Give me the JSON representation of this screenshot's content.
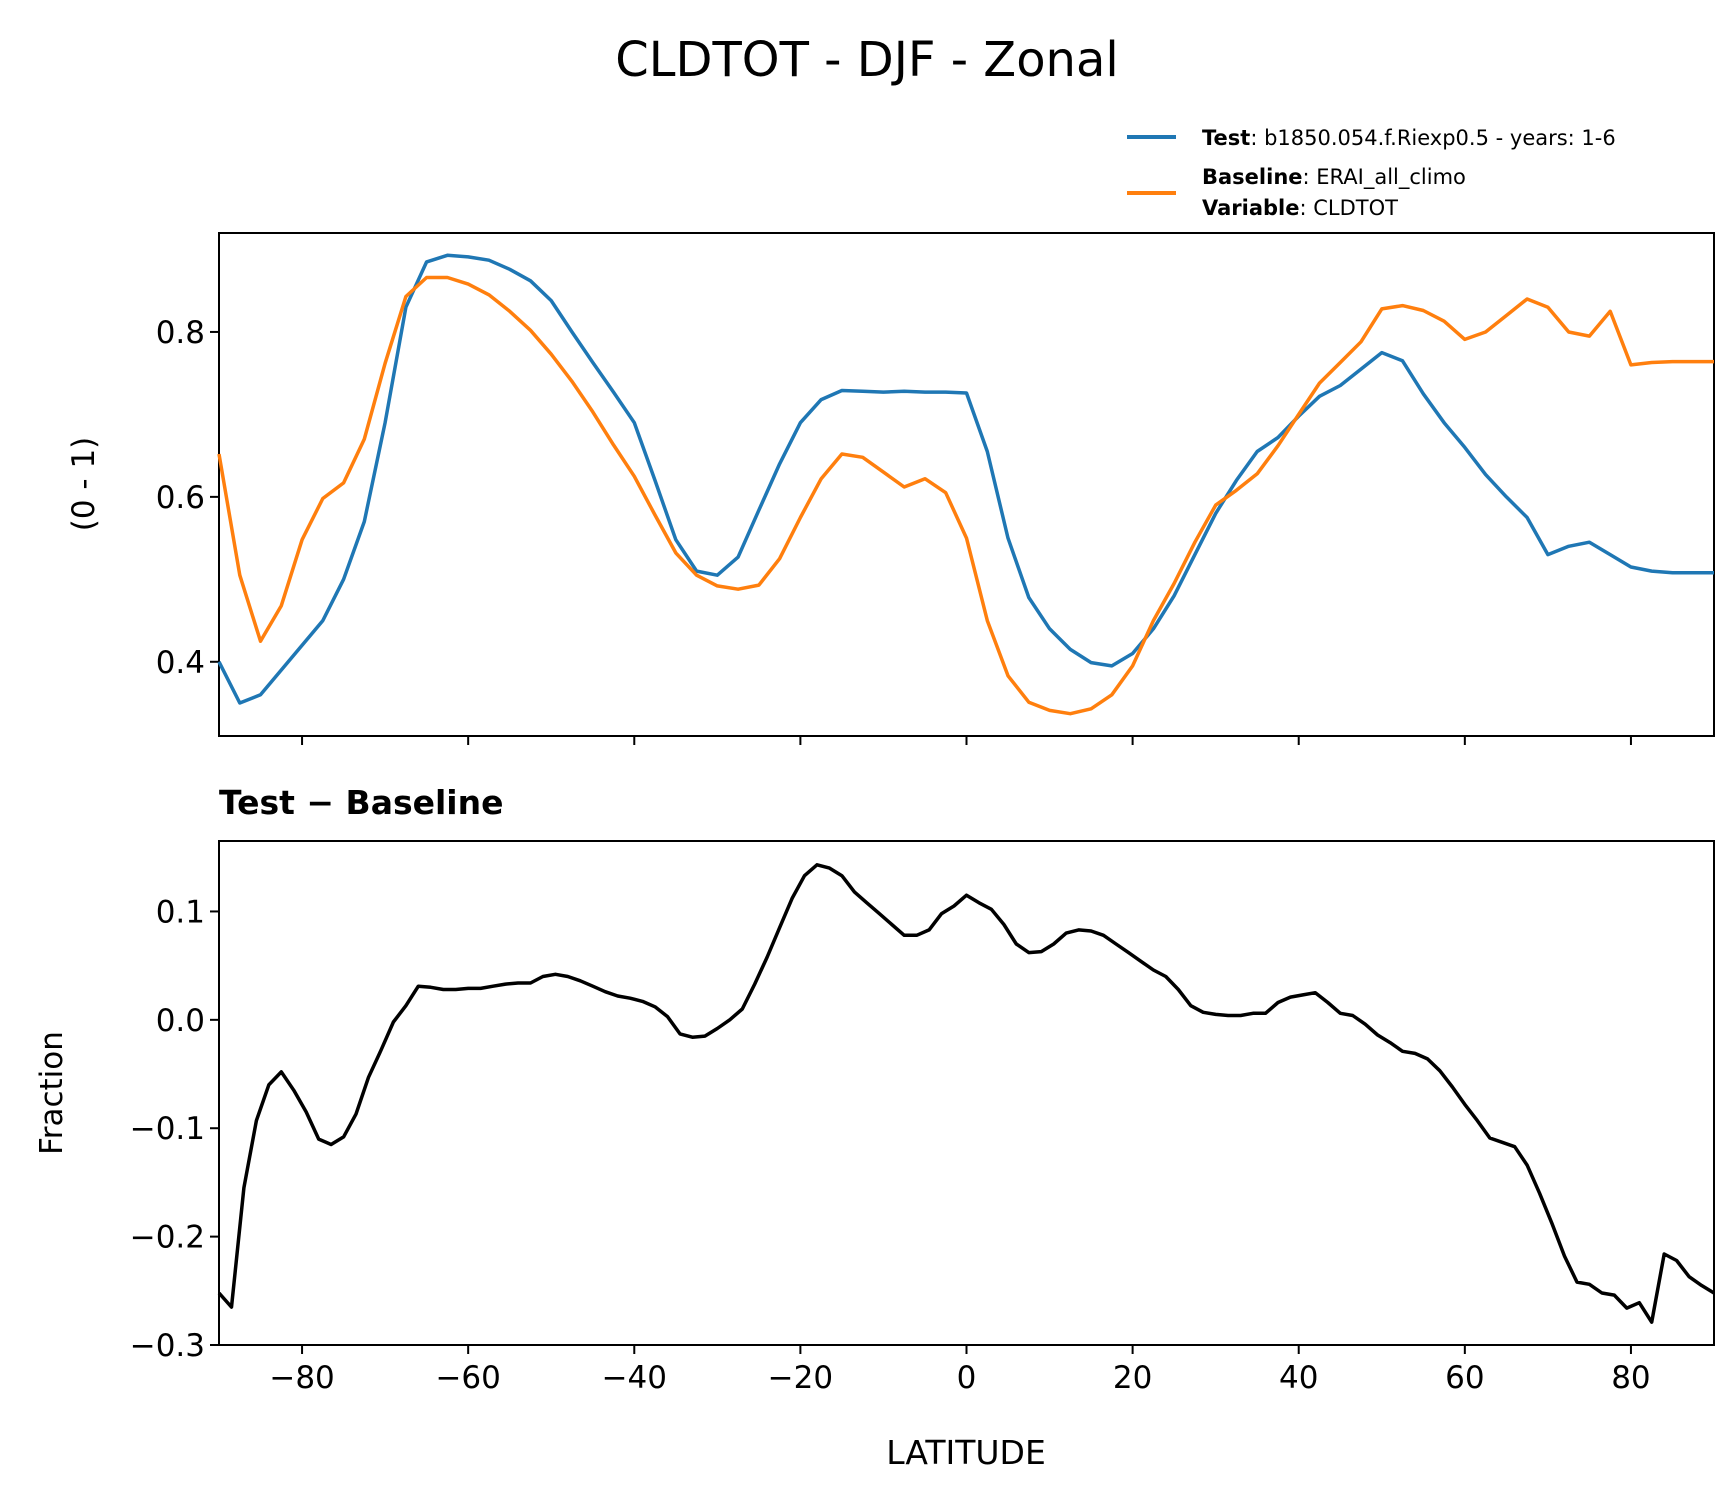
{
  "chart_data": [
    {
      "type": "line",
      "title": "CLDTOT - DJF - Zonal",
      "xlabel": "",
      "ylabel": "(0 - 1)",
      "xlim": [
        -90,
        90
      ],
      "ylim": [
        0.31,
        0.92
      ],
      "yticks": [
        0.4,
        0.6,
        0.8
      ],
      "ytick_labels": [
        "0.4",
        "0.6",
        "0.8"
      ],
      "xticks": [
        -80,
        -60,
        -40,
        -20,
        0,
        20,
        40,
        60,
        80
      ],
      "x": [
        -90,
        -87.5,
        -85,
        -82.5,
        -80,
        -77.5,
        -75,
        -72.5,
        -70,
        -67.5,
        -65,
        -62.5,
        -60,
        -57.5,
        -55,
        -52.5,
        -50,
        -47.5,
        -45,
        -42.5,
        -40,
        -37.5,
        -35,
        -32.5,
        -30,
        -27.5,
        -25,
        -22.5,
        -20,
        -17.5,
        -15,
        -12.5,
        -10,
        -7.5,
        -5,
        -2.5,
        0,
        2.5,
        5,
        7.5,
        10,
        12.5,
        15,
        17.5,
        20,
        22.5,
        25,
        27.5,
        30,
        32.5,
        35,
        37.5,
        40,
        42.5,
        45,
        47.5,
        50,
        52.5,
        55,
        57.5,
        60,
        62.5,
        65,
        67.5,
        70,
        72.5,
        75,
        77.5,
        80,
        82.5,
        85,
        87.5,
        90
      ],
      "series": [
        {
          "name": "Test",
          "color": "#1f77b4",
          "values": [
            0.4,
            0.35,
            0.36,
            0.39,
            0.42,
            0.45,
            0.5,
            0.57,
            0.69,
            0.83,
            0.885,
            0.893,
            0.891,
            0.887,
            0.876,
            0.862,
            0.838,
            0.8,
            0.763,
            0.727,
            0.69,
            0.62,
            0.548,
            0.51,
            0.505,
            0.527,
            0.584,
            0.64,
            0.69,
            0.718,
            0.729,
            0.728,
            0.727,
            0.728,
            0.727,
            0.727,
            0.726,
            0.655,
            0.55,
            0.478,
            0.44,
            0.415,
            0.399,
            0.395,
            0.41,
            0.44,
            0.48,
            0.53,
            0.58,
            0.62,
            0.655,
            0.672,
            0.698,
            0.722,
            0.735,
            0.755,
            0.775,
            0.765,
            0.725,
            0.69,
            0.66,
            0.627,
            0.6,
            0.575,
            0.53,
            0.54,
            0.545,
            0.53,
            0.515,
            0.51,
            0.508,
            0.508,
            0.508
          ]
        },
        {
          "name": "Baseline",
          "color": "#ff7f0e",
          "values": [
            0.652,
            0.505,
            0.425,
            0.468,
            0.548,
            0.598,
            0.617,
            0.67,
            0.762,
            0.843,
            0.866,
            0.866,
            0.858,
            0.845,
            0.825,
            0.802,
            0.773,
            0.74,
            0.703,
            0.663,
            0.625,
            0.578,
            0.532,
            0.505,
            0.492,
            0.488,
            0.493,
            0.525,
            0.575,
            0.622,
            0.652,
            0.648,
            0.63,
            0.612,
            0.622,
            0.605,
            0.55,
            0.45,
            0.383,
            0.351,
            0.341,
            0.337,
            0.343,
            0.36,
            0.395,
            0.45,
            0.495,
            0.545,
            0.59,
            0.608,
            0.628,
            0.662,
            0.7,
            0.738,
            0.763,
            0.788,
            0.828,
            0.832,
            0.826,
            0.813,
            0.791,
            0.8,
            0.82,
            0.84,
            0.83,
            0.8,
            0.795,
            0.825,
            0.76,
            0.763,
            0.764,
            0.764,
            0.764
          ]
        }
      ],
      "legend": [
        {
          "label_bold": "Test",
          "label_text": ": b1850.054.f.Riexp0.5 - years: 1-6",
          "color": "#1f77b4"
        },
        {
          "label_bold": "Baseline",
          "label_text": ": ERAI_all_climo",
          "label_bold2": "Variable",
          "label_text2": ": CLDTOT",
          "color": "#ff7f0e"
        }
      ],
      "legend_position": "top-right"
    },
    {
      "type": "line",
      "title": "Test − Baseline",
      "xlabel": "LATITUDE",
      "ylabel": "Fraction",
      "xlim": [
        -90,
        90
      ],
      "ylim": [
        -0.3,
        0.165
      ],
      "yticks": [
        -0.3,
        -0.2,
        -0.1,
        0.0,
        0.1
      ],
      "ytick_labels": [
        "−0.3",
        "−0.2",
        "−0.1",
        "0.0",
        "0.1"
      ],
      "xticks": [
        -80,
        -60,
        -40,
        -20,
        0,
        20,
        40,
        60,
        80
      ],
      "xtick_labels": [
        "−80",
        "−60",
        "−40",
        "−20",
        "0",
        "20",
        "40",
        "60",
        "80"
      ],
      "x": [
        -90,
        -88.5,
        -87,
        -85.5,
        -84,
        -82.5,
        -81,
        -79.5,
        -78,
        -76.5,
        -75,
        -73.5,
        -72,
        -70.5,
        -69,
        -67.5,
        -66,
        -64.5,
        -63,
        -61.5,
        -60,
        -58.5,
        -57,
        -55.5,
        -54,
        -52.5,
        -51,
        -49.5,
        -48,
        -46.5,
        -45,
        -43.5,
        -42,
        -40.5,
        -39,
        -37.5,
        -36,
        -34.5,
        -33,
        -31.5,
        -30,
        -28.5,
        -27,
        -25.5,
        -24,
        -22.5,
        -21,
        -19.5,
        -18,
        -16.5,
        -15,
        -13.5,
        -12,
        -10.5,
        -9,
        -7.5,
        -6,
        -4.5,
        -3,
        -1.5,
        0,
        1.5,
        3,
        4.5,
        6,
        7.5,
        9,
        10.5,
        12,
        13.5,
        15,
        16.5,
        18,
        19.5,
        21,
        22.5,
        24,
        25.5,
        27,
        28.5,
        30,
        31.5,
        33,
        34.5,
        36,
        37.5,
        39,
        40.5,
        42,
        43.5,
        45,
        46.5,
        48,
        49.5,
        51,
        52.5,
        54,
        55.5,
        57,
        58.5,
        60,
        61.5,
        63,
        64.5,
        66,
        67.5,
        69,
        70.5,
        72,
        73.5,
        75,
        76.5,
        78,
        79.5,
        81,
        82.5,
        84,
        85.5,
        87,
        88.5,
        90
      ],
      "series": [
        {
          "name": "Test − Baseline",
          "color": "#000000",
          "values": [
            -0.252,
            -0.265,
            -0.155,
            -0.093,
            -0.06,
            -0.048,
            -0.065,
            -0.085,
            -0.11,
            -0.115,
            -0.108,
            -0.087,
            -0.053,
            -0.028,
            -0.002,
            0.013,
            0.031,
            0.03,
            0.028,
            0.028,
            0.029,
            0.029,
            0.031,
            0.033,
            0.034,
            0.034,
            0.04,
            0.042,
            0.04,
            0.036,
            0.031,
            0.026,
            0.022,
            0.02,
            0.017,
            0.012,
            0.003,
            -0.013,
            -0.016,
            -0.015,
            -0.008,
            0.0,
            0.01,
            0.033,
            0.058,
            0.085,
            0.112,
            0.133,
            0.143,
            0.14,
            0.133,
            0.118,
            0.108,
            0.098,
            0.088,
            0.078,
            0.078,
            0.083,
            0.098,
            0.105,
            0.115,
            0.108,
            0.102,
            0.088,
            0.07,
            0.062,
            0.063,
            0.07,
            0.08,
            0.083,
            0.082,
            0.078,
            0.07,
            0.062,
            0.054,
            0.046,
            0.04,
            0.028,
            0.013,
            0.007,
            0.005,
            0.004,
            0.004,
            0.006,
            0.006,
            0.016,
            0.021,
            0.023,
            0.025,
            0.016,
            0.006,
            0.004,
            -0.004,
            -0.014,
            -0.021,
            -0.029,
            -0.031,
            -0.036,
            -0.047,
            -0.062,
            -0.078,
            -0.093,
            -0.109,
            -0.113,
            -0.117,
            -0.134,
            -0.16,
            -0.188,
            -0.218,
            -0.242,
            -0.244,
            -0.252,
            -0.254,
            -0.266,
            -0.261,
            -0.279,
            -0.216,
            -0.222,
            -0.237,
            -0.245,
            -0.252
          ]
        }
      ]
    }
  ]
}
